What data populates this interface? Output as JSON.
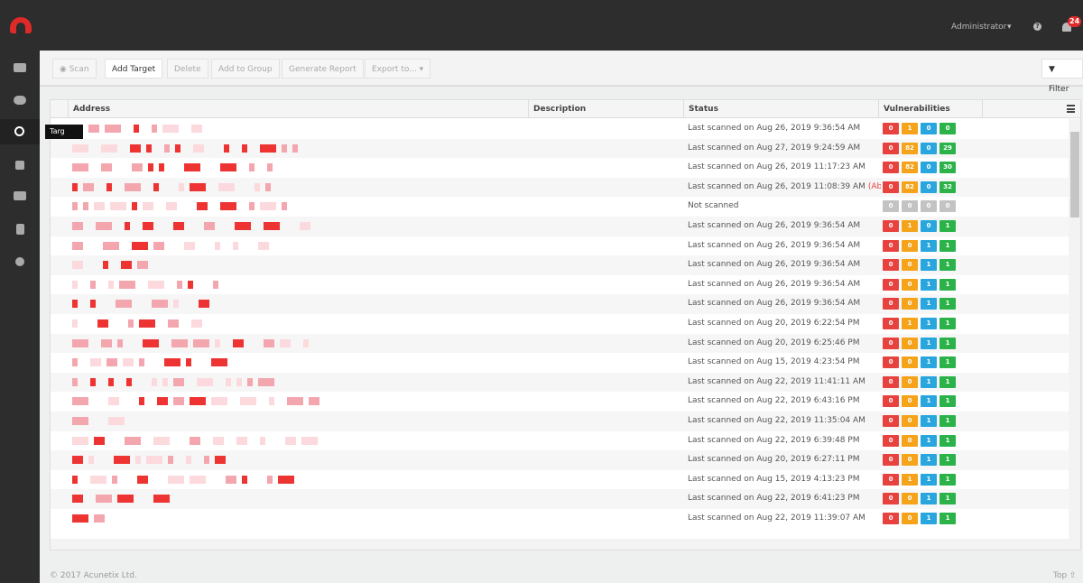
{
  "header": {
    "user": "Administrator",
    "notifications": "24"
  },
  "sidebar": {
    "tooltip": "Targ"
  },
  "toolbar": {
    "buttons": [
      "Scan",
      "Add Target",
      "Delete",
      "Add to Group",
      "Generate Report",
      "Export to..."
    ],
    "filter": "Filter"
  },
  "table": {
    "columns": [
      "Address",
      "Description",
      "Status",
      "Vulnerabilities"
    ],
    "badge_colors": [
      "#e8423f",
      "#f5a31a",
      "#29a6de",
      "#2bb34a"
    ],
    "muted_color": "#c3c3c3",
    "aborted_color": "#e8423f",
    "rows": [
      {
        "status": "Last scanned on Aug 26, 2019 9:36:54 AM",
        "vulns": [
          0,
          1,
          0,
          0
        ]
      },
      {
        "status": "Last scanned on Aug 27, 2019 9:24:59 AM",
        "vulns": [
          0,
          82,
          0,
          29
        ]
      },
      {
        "status": "Last scanned on Aug 26, 2019 11:17:23 AM",
        "vulns": [
          0,
          82,
          0,
          30
        ]
      },
      {
        "status": "Last scanned on Aug 26, 2019 11:08:39 AM",
        "note": "(Aborted)",
        "vulns": [
          0,
          82,
          0,
          32
        ]
      },
      {
        "status": "Not scanned",
        "muted": true,
        "vulns": [
          0,
          0,
          0,
          0
        ]
      },
      {
        "status": "Last scanned on Aug 26, 2019 9:36:54 AM",
        "vulns": [
          0,
          1,
          0,
          1
        ]
      },
      {
        "status": "Last scanned on Aug 26, 2019 9:36:54 AM",
        "vulns": [
          0,
          0,
          1,
          1
        ]
      },
      {
        "status": "Last scanned on Aug 26, 2019 9:36:54 AM",
        "vulns": [
          0,
          0,
          1,
          1
        ]
      },
      {
        "status": "Last scanned on Aug 26, 2019 9:36:54 AM",
        "vulns": [
          0,
          0,
          1,
          1
        ]
      },
      {
        "status": "Last scanned on Aug 26, 2019 9:36:54 AM",
        "vulns": [
          0,
          0,
          1,
          1
        ]
      },
      {
        "status": "Last scanned on Aug 20, 2019 6:22:54 PM",
        "vulns": [
          0,
          1,
          1,
          1
        ]
      },
      {
        "status": "Last scanned on Aug 20, 2019 6:25:46 PM",
        "vulns": [
          0,
          0,
          1,
          1
        ]
      },
      {
        "status": "Last scanned on Aug 15, 2019 4:23:54 PM",
        "vulns": [
          0,
          0,
          1,
          1
        ]
      },
      {
        "status": "Last scanned on Aug 22, 2019 11:41:11 AM",
        "vulns": [
          0,
          0,
          1,
          1
        ]
      },
      {
        "status": "Last scanned on Aug 22, 2019 6:43:16 PM",
        "vulns": [
          0,
          0,
          1,
          1
        ]
      },
      {
        "status": "Last scanned on Aug 22, 2019 11:35:04 AM",
        "vulns": [
          0,
          0,
          1,
          1
        ]
      },
      {
        "status": "Last scanned on Aug 22, 2019 6:39:48 PM",
        "vulns": [
          0,
          0,
          1,
          1
        ]
      },
      {
        "status": "Last scanned on Aug 20, 2019 6:27:11 PM",
        "vulns": [
          0,
          0,
          1,
          1
        ]
      },
      {
        "status": "Last scanned on Aug 15, 2019 4:13:23 PM",
        "vulns": [
          0,
          1,
          1,
          1
        ]
      },
      {
        "status": "Last scanned on Aug 22, 2019 6:41:23 PM",
        "vulns": [
          0,
          0,
          1,
          1
        ]
      },
      {
        "status": "Last scanned on Aug 22, 2019 11:39:07 AM",
        "vulns": [
          0,
          0,
          1,
          1
        ]
      }
    ]
  },
  "footer": {
    "copyright": "© 2017 Acunetix Ltd.",
    "top": "Top"
  }
}
